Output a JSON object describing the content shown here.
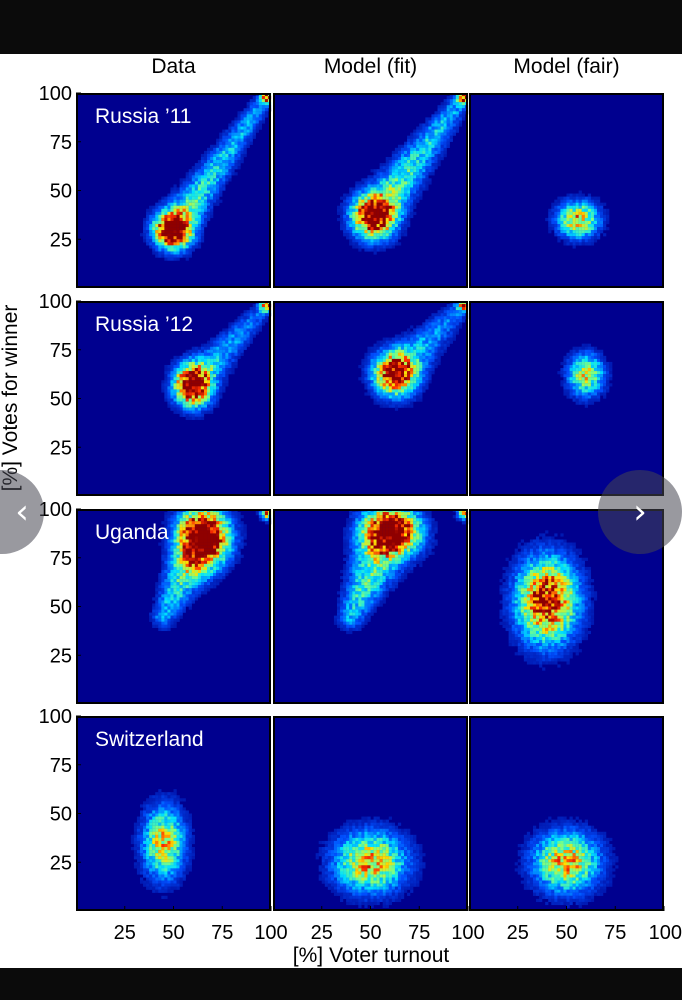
{
  "chart_data": {
    "type": "heatmap",
    "layout": "grid of 2D histograms, 4 rows x 3 columns",
    "columns": [
      "Data",
      "Model (fit)",
      "Model (fair)"
    ],
    "rows": [
      "Russia ’11",
      "Russia ’12",
      "Uganda",
      "Switzerland"
    ],
    "xlabel": "[%] Voter turnout",
    "ylabel": "[%] Votes for winner",
    "xlim": [
      0,
      100
    ],
    "ylim": [
      0,
      100
    ],
    "x_ticks": [
      25,
      50,
      75,
      100
    ],
    "y_ticks": [
      25,
      50,
      75,
      100
    ],
    "colormap": [
      "#00008f",
      "#0050ff",
      "#00e0ff",
      "#7fff7f",
      "#ffe000",
      "#ff3000",
      "#8f0000"
    ],
    "background_color": "#00008f",
    "panels": [
      [
        {
          "center": [
            50,
            30
          ],
          "spread": [
            6,
            6
          ],
          "peak": 1.0,
          "tail_to": [
            97,
            97
          ],
          "tail_strength": 0.45,
          "corner": true
        },
        {
          "center": [
            52,
            37
          ],
          "spread": [
            7,
            7
          ],
          "peak": 0.8,
          "tail_to": [
            97,
            97
          ],
          "tail_strength": 0.5,
          "corner": true
        },
        {
          "center": [
            56,
            35
          ],
          "spread": [
            7,
            6
          ],
          "peak": 0.7,
          "tail_to": null,
          "tail_strength": 0,
          "corner": false
        }
      ],
      [
        {
          "center": [
            60,
            57
          ],
          "spread": [
            6,
            7
          ],
          "peak": 1.0,
          "tail_to": [
            97,
            97
          ],
          "tail_strength": 0.35,
          "corner": true
        },
        {
          "center": [
            63,
            63
          ],
          "spread": [
            7,
            7
          ],
          "peak": 0.85,
          "tail_to": [
            97,
            97
          ],
          "tail_strength": 0.35,
          "corner": true
        },
        {
          "center": [
            60,
            62
          ],
          "spread": [
            6,
            7
          ],
          "peak": 0.6,
          "tail_to": null,
          "tail_strength": 0,
          "corner": false
        }
      ],
      [
        {
          "center": [
            65,
            85
          ],
          "spread": [
            8,
            10
          ],
          "peak": 0.95,
          "tail_to": [
            45,
            45
          ],
          "tail_strength": 0.55,
          "corner": true
        },
        {
          "center": [
            60,
            88
          ],
          "spread": [
            9,
            7
          ],
          "peak": 0.85,
          "tail_to": [
            40,
            45
          ],
          "tail_strength": 0.6,
          "corner": true
        },
        {
          "center": [
            40,
            53
          ],
          "spread": [
            10,
            14
          ],
          "peak": 1.0,
          "tail_to": null,
          "tail_strength": 0,
          "corner": false
        }
      ],
      [
        {
          "center": [
            45,
            35
          ],
          "spread": [
            7,
            12
          ],
          "peak": 0.65,
          "tail_to": null,
          "tail_strength": 0,
          "corner": false
        },
        {
          "center": [
            50,
            25
          ],
          "spread": [
            12,
            10
          ],
          "peak": 0.7,
          "tail_to": null,
          "tail_strength": 0,
          "corner": false
        },
        {
          "center": [
            50,
            25
          ],
          "spread": [
            11,
            10
          ],
          "peak": 0.7,
          "tail_to": null,
          "tail_strength": 0,
          "corner": false
        }
      ]
    ]
  },
  "nav": {
    "prev_glyph": "‹",
    "next_glyph": "›"
  }
}
